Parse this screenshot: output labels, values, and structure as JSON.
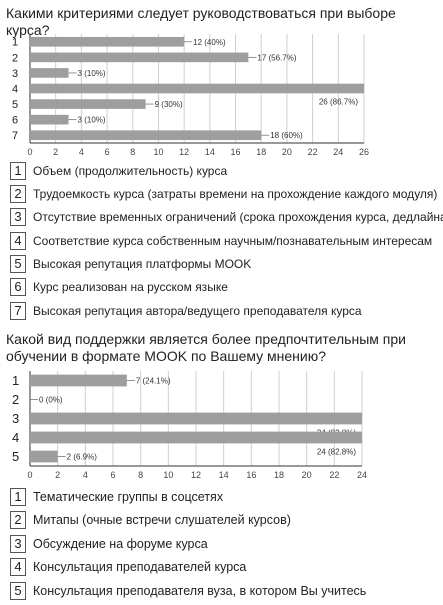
{
  "questions": [
    {
      "title": "Какими критериями следует руководствоваться при выборе курса?",
      "legend": [
        {
          "num": "1",
          "text": "Объем (продолжительность) курса"
        },
        {
          "num": "2",
          "text": "Трудоемкость курса (затраты времени на прохождение каждого модуля)"
        },
        {
          "num": "3",
          "text": "Отсутствие временных ограничений (срока прохождения курса, дедлайна)"
        },
        {
          "num": "4",
          "text": "Соответствие курса собственным научным/познавательным интересам"
        },
        {
          "num": "5",
          "text": "Высокая репутация платформы MOOK"
        },
        {
          "num": "6",
          "text": "Курс реализован на русском языке"
        },
        {
          "num": "7",
          "text": "Высокая репутация автора/ведущего преподавателя курса"
        }
      ]
    },
    {
      "title": "Какой вид поддержки является более предпочтительным при обучении в формате MOOK по Вашему мнению?",
      "legend": [
        {
          "num": "1",
          "text": "Тематические группы в соцсетях"
        },
        {
          "num": "2",
          "text": "Митапы (очные встречи слушателей курсов)"
        },
        {
          "num": "3",
          "text": "Обсуждение на форуме курса"
        },
        {
          "num": "4",
          "text": "Консультация преподавателей курса"
        },
        {
          "num": "5",
          "text": "Консультация преподавателя вуза, в котором Вы учитесь"
        }
      ]
    }
  ],
  "chart_data": [
    {
      "type": "bar",
      "orientation": "horizontal",
      "title": "Какими критериями следует руководствоваться при выборе курса?",
      "categories": [
        "1",
        "2",
        "3",
        "4",
        "5",
        "6",
        "7"
      ],
      "values": [
        12,
        17,
        3,
        26,
        9,
        3,
        18
      ],
      "data_labels": [
        "12 (40%)",
        "17 (56.7%)",
        "3 (10%)",
        "26 (86.7%)",
        "9 (30%)",
        "3 (10%)",
        "18 (60%)"
      ],
      "xticks": [
        "0",
        "2",
        "4",
        "6",
        "8",
        "10",
        "12",
        "14",
        "16",
        "18",
        "20",
        "22",
        "24",
        "26"
      ],
      "xlim": [
        0,
        26
      ],
      "grid": true,
      "bar_color": "#9e9e9e"
    },
    {
      "type": "bar",
      "orientation": "horizontal",
      "title": "Какой вид поддержки является более предпочтительным при обучении в формате MOOK по Вашему мнению?",
      "categories": [
        "1",
        "2",
        "3",
        "4",
        "5"
      ],
      "values": [
        7,
        0,
        24,
        24,
        2
      ],
      "data_labels": [
        "7 (24.1%)",
        "0 (0%)",
        "24 (82.8%)",
        "24 (82.8%)",
        "2 (6.9%)"
      ],
      "xticks": [
        "0",
        "2",
        "4",
        "6",
        "8",
        "10",
        "12",
        "14",
        "16",
        "18",
        "20",
        "22",
        "24"
      ],
      "xlim": [
        0,
        24
      ],
      "grid": true,
      "bar_color": "#9e9e9e"
    }
  ]
}
